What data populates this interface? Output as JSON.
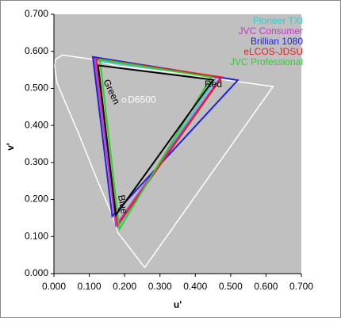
{
  "chart_data": {
    "type": "line",
    "x_label": "u'",
    "y_label": "v'",
    "xlim": [
      0,
      0.7
    ],
    "ylim": [
      0,
      0.7
    ],
    "xticks": [
      {
        "value": 0,
        "label": "0.000"
      },
      {
        "value": 0.1,
        "label": "0.100"
      },
      {
        "value": 0.2,
        "label": "0.200"
      },
      {
        "value": 0.3,
        "label": "0.300"
      },
      {
        "value": 0.4,
        "label": "0.400"
      },
      {
        "value": 0.5,
        "label": "0.500"
      },
      {
        "value": 0.6,
        "label": "0.600"
      },
      {
        "value": 0.7,
        "label": "0.700"
      }
    ],
    "yticks": [
      {
        "value": 0,
        "label": "0.000"
      },
      {
        "value": 0.1,
        "label": "0.100"
      },
      {
        "value": 0.2,
        "label": "0.200"
      },
      {
        "value": 0.3,
        "label": "0.300"
      },
      {
        "value": 0.4,
        "label": "0.400"
      },
      {
        "value": 0.5,
        "label": "0.500"
      },
      {
        "value": 0.6,
        "label": "0.600"
      },
      {
        "value": 0.7,
        "label": "0.700"
      }
    ],
    "grid": false,
    "legend_position": "upper right",
    "series": [
      {
        "color": "#ffffff",
        "x": [
          0.2568,
          0.1813,
          0.164,
          0.125,
          0.069,
          0.009,
          0.002,
          0.004,
          0.025,
          0.06,
          0.099,
          0.18,
          0.27,
          0.36,
          0.43,
          0.62
        ],
        "y": [
          0.0165,
          0.1102,
          0.16,
          0.247,
          0.38,
          0.514,
          0.56,
          0.578,
          0.59,
          0.585,
          0.58,
          0.56,
          0.55,
          0.54,
          0.53,
          0.505
        ]
      },
      {
        "name": "Pioneer TXI",
        "color": "#33cccc",
        "x": [
          0.46,
          0.12,
          0.18
        ],
        "y": [
          0.53,
          0.575,
          0.125
        ]
      },
      {
        "name": "JVC Consumer",
        "color": "#cc33cc",
        "x": [
          0.47,
          0.115,
          0.175
        ],
        "y": [
          0.528,
          0.58,
          0.13
        ]
      },
      {
        "name": "Brillian 1080",
        "color": "#2222dd",
        "x": [
          0.52,
          0.11,
          0.165
        ],
        "y": [
          0.522,
          0.585,
          0.155
        ]
      },
      {
        "name": "eLCOS-JDSU",
        "color": "#dd2222",
        "x": [
          0.475,
          0.12,
          0.18
        ],
        "y": [
          0.53,
          0.58,
          0.13
        ]
      },
      {
        "name": "JVC Professional",
        "color": "#33cc33",
        "x": [
          0.445,
          0.13,
          0.185
        ],
        "y": [
          0.53,
          0.578,
          0.12
        ]
      },
      {
        "color": "#000000",
        "x": [
          0.451,
          0.125,
          0.175
        ],
        "y": [
          0.523,
          0.562,
          0.158
        ]
      }
    ],
    "white_point": {
      "label": "D6500",
      "x": 0.198,
      "y": 0.468
    },
    "annotations": [
      "Red",
      "Green",
      "Blue"
    ]
  }
}
